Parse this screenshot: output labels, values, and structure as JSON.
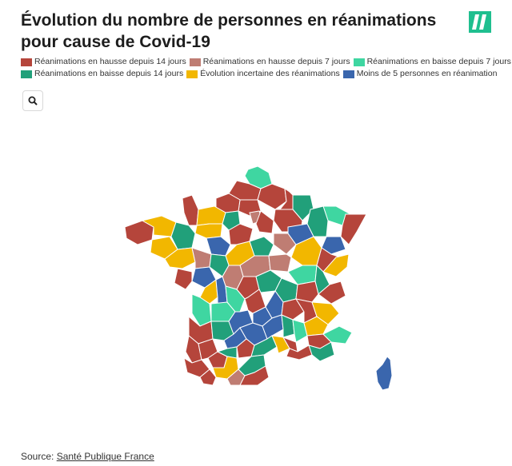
{
  "header": {
    "title": "Évolution du nombre de personnes en réanimations pour cause de Covid-19"
  },
  "logo": {
    "name": "huffpost-logo-icon",
    "color": "#1fbf8f"
  },
  "legend": {
    "row1": [
      {
        "label": "Réanimations en hausse depuis 14 jours",
        "color": "#b5453b"
      },
      {
        "label": "Réanimations en hausse depuis 7 jours",
        "color": "#bf7d73"
      },
      {
        "label": "Réanimations en baisse depuis 7 jours",
        "color": "#3fd6a1"
      }
    ],
    "row2": [
      {
        "label": "Réanimations en baisse depuis 14 jours",
        "color": "#21a07a"
      },
      {
        "label": "Évolution incertaine des réanimations",
        "color": "#f2b700"
      },
      {
        "label": "Moins de 5 personnes en réanimation",
        "color": "#3a66ad"
      }
    ]
  },
  "search": {
    "icon": "search-icon"
  },
  "source": {
    "prefix": "Source: ",
    "link_text": "Santé Publique France"
  }
}
